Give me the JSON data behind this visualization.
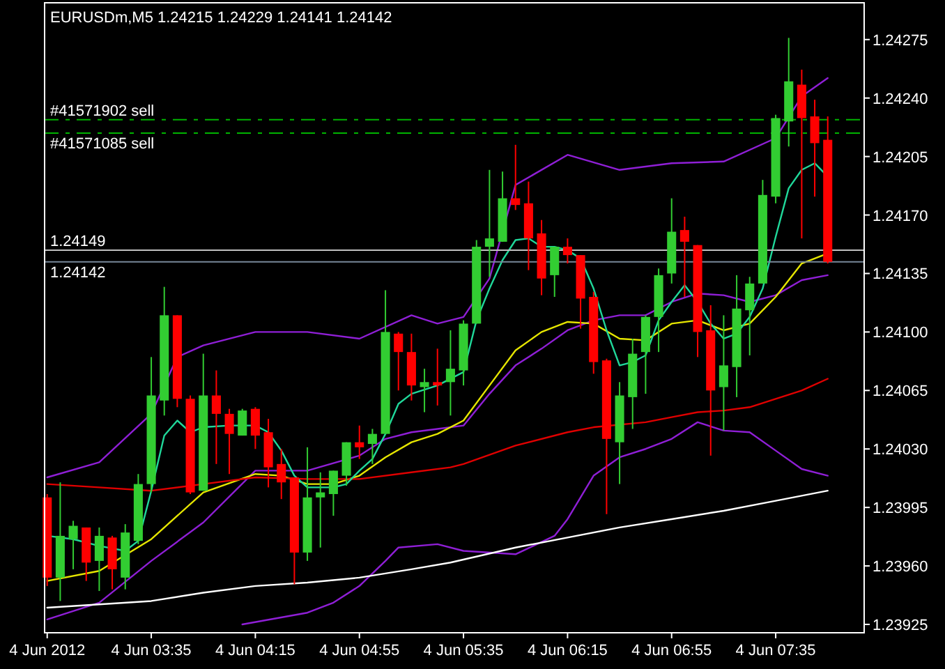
{
  "chart_data": {
    "type": "candlestick",
    "title": "EURUSDm,M5  1.24215 1.24229 1.24141 1.24142",
    "x": [
      "2012-06-04T02:55",
      "2012-06-04T03:00",
      "2012-06-04T03:05",
      "2012-06-04T03:10",
      "2012-06-04T03:15",
      "2012-06-04T03:20",
      "2012-06-04T03:25",
      "2012-06-04T03:30",
      "2012-06-04T03:35",
      "2012-06-04T03:40",
      "2012-06-04T03:45",
      "2012-06-04T03:50",
      "2012-06-04T03:55",
      "2012-06-04T04:00",
      "2012-06-04T04:05",
      "2012-06-04T04:10",
      "2012-06-04T04:15",
      "2012-06-04T04:20",
      "2012-06-04T04:25",
      "2012-06-04T04:30",
      "2012-06-04T04:35",
      "2012-06-04T04:40",
      "2012-06-04T04:45",
      "2012-06-04T04:50",
      "2012-06-04T04:55",
      "2012-06-04T05:00",
      "2012-06-04T05:05",
      "2012-06-04T05:10",
      "2012-06-04T05:15",
      "2012-06-04T05:20",
      "2012-06-04T05:25",
      "2012-06-04T05:30",
      "2012-06-04T05:35",
      "2012-06-04T05:40",
      "2012-06-04T05:45",
      "2012-06-04T05:50",
      "2012-06-04T05:55",
      "2012-06-04T06:00",
      "2012-06-04T06:05",
      "2012-06-04T06:10",
      "2012-06-04T06:15",
      "2012-06-04T06:20",
      "2012-06-04T06:25",
      "2012-06-04T06:30",
      "2012-06-04T06:35",
      "2012-06-04T06:40",
      "2012-06-04T06:45",
      "2012-06-04T06:50",
      "2012-06-04T06:55",
      "2012-06-04T07:00",
      "2012-06-04T07:05",
      "2012-06-04T07:10",
      "2012-06-04T07:15",
      "2012-06-04T07:20",
      "2012-06-04T07:25",
      "2012-06-04T07:30",
      "2012-06-04T07:35",
      "2012-06-04T07:40",
      "2012-06-04T07:45",
      "2012-06-04T07:50",
      "2012-06-04T07:55"
    ],
    "ohlc": [
      [
        1.24001,
        1.24003,
        1.23948,
        1.23953
      ],
      [
        1.23953,
        1.2401,
        1.23939,
        1.23978
      ],
      [
        1.23976,
        1.23987,
        1.23958,
        1.23984
      ],
      [
        1.23983,
        1.23983,
        1.23951,
        1.23962
      ],
      [
        1.23963,
        1.23983,
        1.23945,
        1.23978
      ],
      [
        1.23977,
        1.23978,
        1.23946,
        1.23958
      ],
      [
        1.23953,
        1.23985,
        1.23946,
        1.2398
      ],
      [
        1.23975,
        1.24015,
        1.23973,
        1.24009
      ],
      [
        1.24009,
        1.24085,
        1.24004,
        1.24062
      ],
      [
        1.24059,
        1.24127,
        1.2405,
        1.2411
      ],
      [
        1.2411,
        1.2411,
        1.24055,
        1.2406
      ],
      [
        1.2406,
        1.24062,
        1.24003,
        1.24004
      ],
      [
        1.24005,
        1.24087,
        1.24005,
        1.24062
      ],
      [
        1.24062,
        1.24077,
        1.24021,
        1.24051
      ],
      [
        1.24051,
        1.24054,
        1.24015,
        1.24039
      ],
      [
        1.24038,
        1.24054,
        1.24038,
        1.24053
      ],
      [
        1.24054,
        1.24055,
        1.2403,
        1.24038
      ],
      [
        1.2404,
        1.24048,
        1.24007,
        1.24019
      ],
      [
        1.24021,
        1.2403,
        1.24,
        1.2401
      ],
      [
        1.24013,
        1.24013,
        1.23949,
        1.23968
      ],
      [
        1.23968,
        1.24031,
        1.23963,
        1.24001
      ],
      [
        1.24001,
        1.24016,
        1.23971,
        1.24004
      ],
      [
        1.24003,
        1.24017,
        1.2399,
        1.24017
      ],
      [
        1.24014,
        1.24034,
        1.24008,
        1.24034
      ],
      [
        1.24034,
        1.24044,
        1.24024,
        1.24031
      ],
      [
        1.24033,
        1.24042,
        1.24021,
        1.24039
      ],
      [
        1.24039,
        1.24125,
        1.24039,
        1.241
      ],
      [
        1.24099,
        1.241,
        1.24065,
        1.24088
      ],
      [
        1.24088,
        1.24099,
        1.24059,
        1.24068
      ],
      [
        1.24067,
        1.24078,
        1.24052,
        1.2407
      ],
      [
        1.2407,
        1.2409,
        1.24056,
        1.24068
      ],
      [
        1.2407,
        1.24101,
        1.2405,
        1.24078
      ],
      [
        1.24077,
        1.24107,
        1.24068,
        1.24105
      ],
      [
        1.24105,
        1.24155,
        1.24105,
        1.24151
      ],
      [
        1.24151,
        1.24197,
        1.24133,
        1.24156
      ],
      [
        1.24154,
        1.24196,
        1.24154,
        1.2418
      ],
      [
        1.2418,
        1.24212,
        1.24173,
        1.24176
      ],
      [
        1.24177,
        1.2419,
        1.24137,
        1.24156
      ],
      [
        1.24159,
        1.24167,
        1.24122,
        1.24132
      ],
      [
        1.24134,
        1.24151,
        1.24121,
        1.24151
      ],
      [
        1.24151,
        1.24156,
        1.24141,
        1.24146
      ],
      [
        1.24146,
        1.24146,
        1.24102,
        1.2412
      ],
      [
        1.24121,
        1.24124,
        1.24075,
        1.24082
      ],
      [
        1.24083,
        1.24084,
        1.23991,
        1.24036
      ],
      [
        1.24034,
        1.2407,
        1.24009,
        1.24062
      ],
      [
        1.24061,
        1.24096,
        1.24042,
        1.24087
      ],
      [
        1.24088,
        1.2411,
        1.24063,
        1.24109
      ],
      [
        1.24109,
        1.24138,
        1.24088,
        1.24134
      ],
      [
        1.24135,
        1.2418,
        1.24129,
        1.2416
      ],
      [
        1.24161,
        1.24169,
        1.24121,
        1.24154
      ],
      [
        1.24152,
        1.24152,
        1.24085,
        1.241
      ],
      [
        1.24101,
        1.24116,
        1.24026,
        1.24065
      ],
      [
        1.24067,
        1.2411,
        1.24041,
        1.2408
      ],
      [
        1.24079,
        1.24134,
        1.24061,
        1.24114
      ],
      [
        1.24113,
        1.24133,
        1.24086,
        1.24129
      ],
      [
        1.24129,
        1.24191,
        1.24129,
        1.24182
      ],
      [
        1.24181,
        1.2423,
        1.24177,
        1.24228
      ],
      [
        1.24226,
        1.24276,
        1.24211,
        1.2425
      ],
      [
        1.24248,
        1.24257,
        1.24156,
        1.24228
      ],
      [
        1.24229,
        1.24239,
        1.24181,
        1.24213
      ],
      [
        1.24215,
        1.24229,
        1.24141,
        1.24142
      ]
    ],
    "series": [
      {
        "type": "line",
        "color": "#8f1fd6",
        "x": [
          "2012-06-04T02:55",
          "2012-06-04T03:15",
          "2012-06-04T03:35",
          "2012-06-04T03:45",
          "2012-06-04T03:55",
          "2012-06-04T04:15",
          "2012-06-04T04:35",
          "2012-06-04T04:55",
          "2012-06-04T05:15",
          "2012-06-04T05:25",
          "2012-06-04T05:35",
          "2012-06-04T05:45",
          "2012-06-04T05:55",
          "2012-06-04T06:15",
          "2012-06-04T06:35",
          "2012-06-04T06:55",
          "2012-06-04T07:15",
          "2012-06-04T07:35",
          "2012-06-04T07:45",
          "2012-06-04T07:55"
        ],
        "values": [
          1.24013,
          1.24022,
          1.24051,
          1.24085,
          1.24092,
          1.241,
          1.241,
          1.24096,
          1.2411,
          1.24105,
          1.24109,
          1.24132,
          1.24188,
          1.24206,
          1.24197,
          1.24201,
          1.24202,
          1.24216,
          1.24241,
          1.24252
        ]
      },
      {
        "type": "line",
        "color": "#8f1fd6",
        "x": [
          "2012-06-04T02:55",
          "2012-06-04T03:15",
          "2012-06-04T03:35",
          "2012-06-04T03:55",
          "2012-06-04T04:15",
          "2012-06-04T04:35",
          "2012-06-04T04:55",
          "2012-06-04T05:05",
          "2012-06-04T05:15",
          "2012-06-04T05:25",
          "2012-06-04T05:35",
          "2012-06-04T05:45",
          "2012-06-04T05:55",
          "2012-06-04T06:05",
          "2012-06-04T06:15",
          "2012-06-04T06:25",
          "2012-06-04T06:35",
          "2012-06-04T06:45",
          "2012-06-04T06:55",
          "2012-06-04T07:05",
          "2012-06-04T07:15",
          "2012-06-04T07:25",
          "2012-06-04T07:35",
          "2012-06-04T07:45",
          "2012-06-04T07:55"
        ],
        "values": [
          1.23928,
          1.23938,
          1.23963,
          1.23986,
          1.24017,
          1.24017,
          1.24026,
          1.24036,
          1.2404,
          1.24042,
          1.24044,
          1.24063,
          1.2408,
          1.2409,
          1.24101,
          1.24107,
          1.2411,
          1.2411,
          1.24118,
          1.24123,
          1.24122,
          1.24118,
          1.24122,
          1.24131,
          1.24134
        ]
      },
      {
        "type": "line",
        "color": "#8f1fd6",
        "x": [
          "2012-06-04T04:10",
          "2012-06-04T04:35",
          "2012-06-04T04:45",
          "2012-06-04T04:55",
          "2012-06-04T05:05",
          "2012-06-04T05:10",
          "2012-06-04T05:25",
          "2012-06-04T05:35",
          "2012-06-04T05:55",
          "2012-06-04T06:10",
          "2012-06-04T06:15",
          "2012-06-04T06:25",
          "2012-06-04T06:35",
          "2012-06-04T06:45",
          "2012-06-04T06:55",
          "2012-06-04T07:05",
          "2012-06-04T07:15",
          "2012-06-04T07:25",
          "2012-06-04T07:35",
          "2012-06-04T07:45",
          "2012-06-04T07:55"
        ],
        "values": [
          1.23925,
          1.23932,
          1.23938,
          1.23948,
          1.23963,
          1.23971,
          1.23973,
          1.23969,
          1.23967,
          1.23978,
          1.23988,
          1.24014,
          1.24025,
          1.2403,
          1.24036,
          1.24046,
          1.24041,
          1.2404,
          1.24029,
          1.24018,
          1.24014
        ]
      },
      {
        "type": "line",
        "color": "#e6e600",
        "x": [
          "2012-06-04T02:55",
          "2012-06-04T03:15",
          "2012-06-04T03:35",
          "2012-06-04T03:55",
          "2012-06-04T04:15",
          "2012-06-04T04:25",
          "2012-06-04T04:35",
          "2012-06-04T04:45",
          "2012-06-04T04:55",
          "2012-06-04T05:05",
          "2012-06-04T05:15",
          "2012-06-04T05:25",
          "2012-06-04T05:35",
          "2012-06-04T05:45",
          "2012-06-04T05:55",
          "2012-06-04T06:05",
          "2012-06-04T06:15",
          "2012-06-04T06:25",
          "2012-06-04T06:35",
          "2012-06-04T06:45",
          "2012-06-04T06:55",
          "2012-06-04T07:05",
          "2012-06-04T07:15",
          "2012-06-04T07:25",
          "2012-06-04T07:35",
          "2012-06-04T07:45",
          "2012-06-04T07:55"
        ],
        "values": [
          1.23951,
          1.23957,
          1.23976,
          1.24004,
          1.24015,
          1.24014,
          1.24009,
          1.24009,
          1.24014,
          1.24025,
          1.24034,
          1.24039,
          1.24047,
          1.24068,
          1.24089,
          1.241,
          1.24106,
          1.24105,
          1.24096,
          1.24095,
          1.24105,
          1.24107,
          1.24101,
          1.24105,
          1.24121,
          1.24141,
          1.24147
        ]
      },
      {
        "type": "line",
        "color": "#e00000",
        "x": [
          "2012-06-04T02:55",
          "2012-06-04T03:15",
          "2012-06-04T03:35",
          "2012-06-04T03:55",
          "2012-06-04T04:15",
          "2012-06-04T04:35",
          "2012-06-04T04:55",
          "2012-06-04T05:15",
          "2012-06-04T05:30",
          "2012-06-04T05:35",
          "2012-06-04T05:55",
          "2012-06-04T06:15",
          "2012-06-04T06:25",
          "2012-06-04T06:45",
          "2012-06-04T06:55",
          "2012-06-04T07:05",
          "2012-06-04T07:15",
          "2012-06-04T07:25",
          "2012-06-04T07:35",
          "2012-06-04T07:45",
          "2012-06-04T07:55"
        ],
        "values": [
          1.24009,
          1.24007,
          1.24005,
          1.24009,
          1.24013,
          1.24012,
          1.24012,
          1.24016,
          1.24019,
          1.24021,
          1.24032,
          1.2404,
          1.24043,
          1.24046,
          1.24049,
          1.24052,
          1.24053,
          1.24055,
          1.2406,
          1.24065,
          1.24072
        ]
      },
      {
        "type": "line",
        "color": "#ffffff",
        "x": [
          "2012-06-04T02:55",
          "2012-06-04T03:15",
          "2012-06-04T03:35",
          "2012-06-04T03:55",
          "2012-06-04T04:15",
          "2012-06-04T04:35",
          "2012-06-04T04:55",
          "2012-06-04T05:15",
          "2012-06-04T05:30",
          "2012-06-04T05:55",
          "2012-06-04T06:15",
          "2012-06-04T06:35",
          "2012-06-04T06:55",
          "2012-06-04T07:15",
          "2012-06-04T07:35",
          "2012-06-04T07:55"
        ],
        "values": [
          1.23935,
          1.23937,
          1.23939,
          1.23944,
          1.23948,
          1.2395,
          1.23953,
          1.23958,
          1.23962,
          1.23971,
          1.23977,
          1.23983,
          1.23988,
          1.23993,
          1.23999,
          1.24005
        ]
      },
      {
        "type": "line",
        "color": "#20d89a",
        "x": [
          "2012-06-04T02:55",
          "2012-06-04T03:05",
          "2012-06-04T03:15",
          "2012-06-04T03:25",
          "2012-06-04T03:30",
          "2012-06-04T03:35",
          "2012-06-04T03:40",
          "2012-06-04T03:45",
          "2012-06-04T03:50",
          "2012-06-04T03:55",
          "2012-06-04T04:05",
          "2012-06-04T04:15",
          "2012-06-04T04:20",
          "2012-06-04T04:25",
          "2012-06-04T04:30",
          "2012-06-04T04:35",
          "2012-06-04T04:45",
          "2012-06-04T04:50",
          "2012-06-04T04:55",
          "2012-06-04T05:00",
          "2012-06-04T05:05",
          "2012-06-04T05:10",
          "2012-06-04T05:15",
          "2012-06-04T05:25",
          "2012-06-04T05:35",
          "2012-06-04T05:40",
          "2012-06-04T05:45",
          "2012-06-04T05:50",
          "2012-06-04T05:55",
          "2012-06-04T06:00",
          "2012-06-04T06:05",
          "2012-06-04T06:10",
          "2012-06-04T06:15",
          "2012-06-04T06:20",
          "2012-06-04T06:25",
          "2012-06-04T06:30",
          "2012-06-04T06:35",
          "2012-06-04T06:40",
          "2012-06-04T06:45",
          "2012-06-04T06:50",
          "2012-06-04T06:55",
          "2012-06-04T07:00",
          "2012-06-04T07:05",
          "2012-06-04T07:10",
          "2012-06-04T07:15",
          "2012-06-04T07:20",
          "2012-06-04T07:25",
          "2012-06-04T07:30",
          "2012-06-04T07:35",
          "2012-06-04T07:40",
          "2012-06-04T07:45",
          "2012-06-04T07:50",
          "2012-06-04T07:55"
        ],
        "values": [
          1.23978,
          1.23976,
          1.23972,
          1.23969,
          1.23975,
          1.24005,
          1.24038,
          1.24047,
          1.2404,
          1.24043,
          1.24044,
          1.24044,
          1.2404,
          1.24029,
          1.24014,
          1.24007,
          1.24007,
          1.24009,
          1.24017,
          1.24024,
          1.24039,
          1.24057,
          1.24063,
          1.24068,
          1.24076,
          1.24107,
          1.24126,
          1.24143,
          1.24155,
          1.24156,
          1.24151,
          1.24151,
          1.24149,
          1.24144,
          1.24126,
          1.24101,
          1.2408,
          1.24082,
          1.24086,
          1.24107,
          1.24118,
          1.24128,
          1.24118,
          1.24105,
          1.24096,
          1.24099,
          1.24109,
          1.24126,
          1.24157,
          1.24186,
          1.24197,
          1.24201,
          1.24193
        ]
      }
    ],
    "xlim": [
      "2012-06-04T02:54",
      "2012-06-04T08:09"
    ],
    "xticks": [
      {
        "value": "2012-06-04T02:55",
        "label": "4 Jun 2012"
      },
      {
        "value": "2012-06-04T03:35",
        "label": "4 Jun 03:35"
      },
      {
        "value": "2012-06-04T04:15",
        "label": "4 Jun 04:15"
      },
      {
        "value": "2012-06-04T04:55",
        "label": "4 Jun 04:55"
      },
      {
        "value": "2012-06-04T05:35",
        "label": "4 Jun 05:35"
      },
      {
        "value": "2012-06-04T06:15",
        "label": "4 Jun 06:15"
      },
      {
        "value": "2012-06-04T06:55",
        "label": "4 Jun 06:55"
      },
      {
        "value": "2012-06-04T07:35",
        "label": "4 Jun 07:35"
      }
    ],
    "ylim": [
      1.2392,
      1.24297
    ],
    "yticks": [
      1.24275,
      {
        "value": 1.2424,
        "label": "1.24240"
      },
      1.24205,
      {
        "value": 1.2417,
        "label": "1.24170"
      },
      1.24135,
      {
        "value": 1.241,
        "label": "1.24100"
      },
      1.24065,
      {
        "value": 1.2403,
        "label": "1.24030"
      },
      1.23995,
      {
        "value": 1.2396,
        "label": "1.23960"
      },
      1.23925
    ],
    "ref_lines": [
      {
        "axis": "y",
        "value": 1.24227,
        "label": "#41571902 sell",
        "color": "#00b400",
        "line_style": "dashed"
      },
      {
        "axis": "y",
        "value": 1.24219,
        "label": "#41571085 sell",
        "color": "#00b400",
        "line_style": "dashed"
      },
      {
        "axis": "y",
        "value": 1.24149,
        "label": "1.24149",
        "color": "#c0c0c0",
        "line_style": "solid"
      },
      {
        "axis": "y",
        "value": 1.24142,
        "label": "1.24142",
        "color": "#778899",
        "line_style": "solid"
      }
    ],
    "grid": false
  }
}
